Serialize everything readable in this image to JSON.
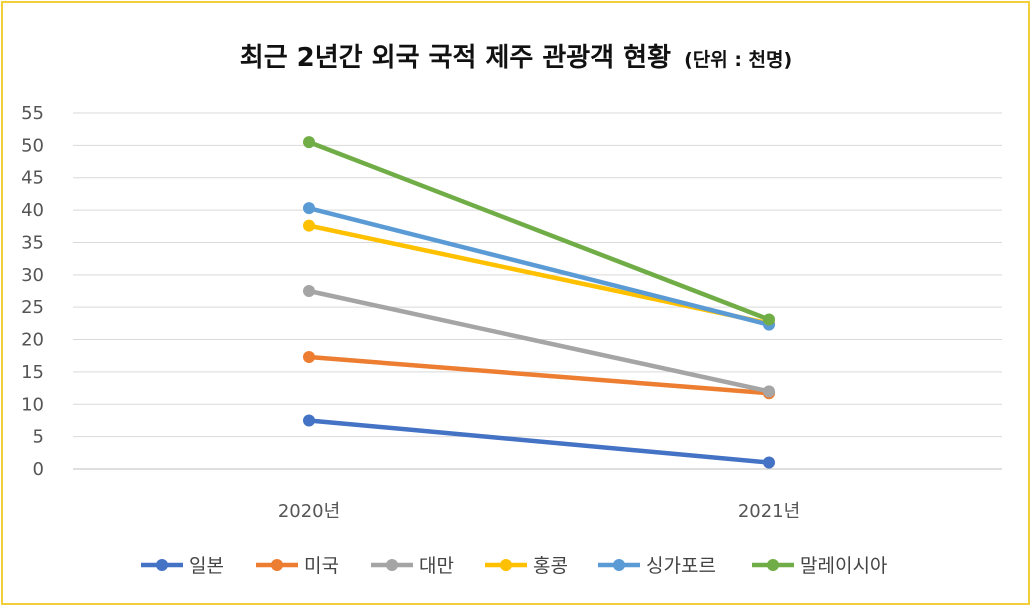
{
  "chart_data": {
    "type": "line",
    "title": "최근 2년간 외국 국적 제주 관광객 현황",
    "unit_label": "(단위 : 천명)",
    "categories": [
      "2020년",
      "2021년"
    ],
    "y_ticks": [
      "0",
      "5",
      "10",
      "15",
      "20",
      "25",
      "30",
      "35",
      "40",
      "45",
      "50",
      "55"
    ],
    "ylim": [
      0,
      55
    ],
    "grid": true,
    "legend_position": "bottom",
    "series": [
      {
        "name": "일본",
        "color": "#4472c4",
        "values": [
          7.5,
          1.0
        ]
      },
      {
        "name": "미국",
        "color": "#ed7d31",
        "values": [
          17.3,
          11.7
        ]
      },
      {
        "name": "대만",
        "color": "#a5a5a5",
        "values": [
          27.5,
          12.0
        ]
      },
      {
        "name": "홍콩",
        "color": "#ffc000",
        "values": [
          37.6,
          22.5
        ]
      },
      {
        "name": "싱가포르",
        "color": "#5b9bd5",
        "values": [
          40.3,
          22.3
        ]
      },
      {
        "name": "말레이시아",
        "color": "#70ad47",
        "values": [
          50.5,
          23.1
        ]
      }
    ]
  }
}
